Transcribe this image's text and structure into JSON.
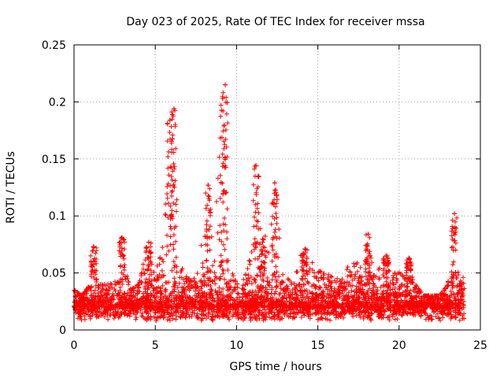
{
  "chart_data": {
    "type": "scatter",
    "title": "Day 023 of 2025, Rate Of TEC Index for receiver mssa",
    "xlabel": "GPS time / hours",
    "ylabel": "ROTI / TECUs",
    "xlim": [
      0,
      25
    ],
    "ylim": [
      0,
      0.25
    ],
    "x_ticks": [
      "0",
      "5",
      "10",
      "15",
      "20",
      "25"
    ],
    "y_ticks": [
      "0",
      "0.05",
      "0.1",
      "0.15",
      "0.2",
      "0.25"
    ],
    "grid": true,
    "marker": "+",
    "series": [
      {
        "name": "mssa",
        "color": "#ff0000",
        "background_band": {
          "x": [
            0,
            24
          ],
          "low": 0.008,
          "high": 0.04
        },
        "envelope": [
          [
            0.0,
            0.035
          ],
          [
            0.5,
            0.03
          ],
          [
            1.0,
            0.04
          ],
          [
            1.25,
            0.072
          ],
          [
            1.5,
            0.04
          ],
          [
            2.0,
            0.04
          ],
          [
            2.5,
            0.045
          ],
          [
            2.9,
            0.08
          ],
          [
            3.2,
            0.05
          ],
          [
            3.5,
            0.035
          ],
          [
            4.0,
            0.04
          ],
          [
            4.5,
            0.075
          ],
          [
            5.0,
            0.05
          ],
          [
            5.5,
            0.08
          ],
          [
            5.8,
            0.17
          ],
          [
            6.0,
            0.185
          ],
          [
            6.2,
            0.195
          ],
          [
            6.5,
            0.06
          ],
          [
            7.0,
            0.045
          ],
          [
            7.5,
            0.045
          ],
          [
            8.0,
            0.1
          ],
          [
            8.3,
            0.128
          ],
          [
            8.6,
            0.05
          ],
          [
            9.0,
            0.2
          ],
          [
            9.25,
            0.215
          ],
          [
            9.5,
            0.06
          ],
          [
            10.0,
            0.04
          ],
          [
            10.5,
            0.045
          ],
          [
            11.0,
            0.075
          ],
          [
            11.25,
            0.145
          ],
          [
            11.5,
            0.08
          ],
          [
            12.0,
            0.09
          ],
          [
            12.4,
            0.13
          ],
          [
            12.8,
            0.05
          ],
          [
            13.5,
            0.04
          ],
          [
            14.0,
            0.07
          ],
          [
            14.5,
            0.06
          ],
          [
            15.0,
            0.06
          ],
          [
            15.5,
            0.05
          ],
          [
            16.0,
            0.045
          ],
          [
            16.5,
            0.045
          ],
          [
            17.0,
            0.06
          ],
          [
            17.5,
            0.06
          ],
          [
            18.0,
            0.085
          ],
          [
            18.5,
            0.05
          ],
          [
            19.0,
            0.065
          ],
          [
            19.5,
            0.05
          ],
          [
            20.0,
            0.05
          ],
          [
            20.5,
            0.063
          ],
          [
            21.0,
            0.04
          ],
          [
            21.5,
            0.03
          ],
          [
            22.0,
            0.03
          ],
          [
            22.5,
            0.03
          ],
          [
            23.0,
            0.04
          ],
          [
            23.4,
            0.102
          ],
          [
            23.7,
            0.05
          ],
          [
            24.0,
            0.045
          ]
        ],
        "peaks": [
          {
            "x": 1.2,
            "y": 0.073
          },
          {
            "x": 2.95,
            "y": 0.081
          },
          {
            "x": 4.6,
            "y": 0.077
          },
          {
            "x": 5.9,
            "y": 0.184
          },
          {
            "x": 6.15,
            "y": 0.194
          },
          {
            "x": 8.25,
            "y": 0.127
          },
          {
            "x": 9.15,
            "y": 0.203
          },
          {
            "x": 9.3,
            "y": 0.215
          },
          {
            "x": 11.2,
            "y": 0.144
          },
          {
            "x": 11.6,
            "y": 0.077
          },
          {
            "x": 12.35,
            "y": 0.129
          },
          {
            "x": 14.2,
            "y": 0.071
          },
          {
            "x": 18.1,
            "y": 0.084
          },
          {
            "x": 19.2,
            "y": 0.065
          },
          {
            "x": 20.6,
            "y": 0.063
          },
          {
            "x": 23.4,
            "y": 0.102
          }
        ]
      }
    ]
  }
}
